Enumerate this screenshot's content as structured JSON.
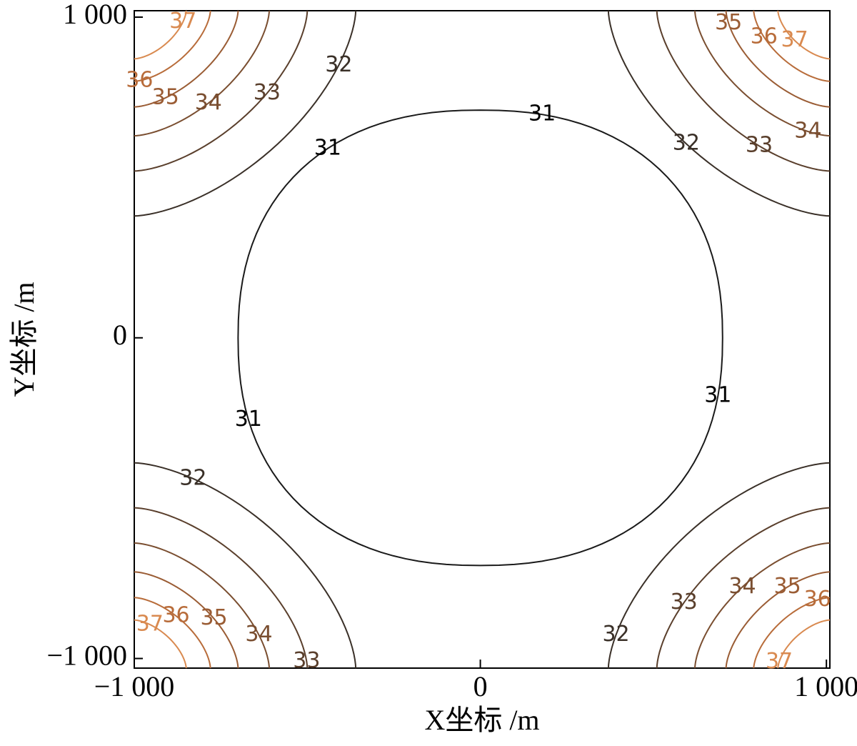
{
  "chart_data": {
    "type": "contour",
    "xlabel": "X坐标 /m",
    "ylabel": "Y坐标 /m",
    "xlim": [
      -1000,
      1010
    ],
    "ylim": [
      -1030,
      1020
    ],
    "xticks": [
      {
        "value": -1000,
        "label": "−1 000"
      },
      0,
      {
        "value": 1000,
        "label": "1 000"
      }
    ],
    "yticks": [
      {
        "value": -1000,
        "label": "−1 000"
      },
      0,
      {
        "value": 1000,
        "label": "1 000"
      }
    ],
    "levels": [
      31,
      32,
      33,
      34,
      35,
      36,
      37
    ],
    "colors": [
      "#1a1a1a",
      "#3a3028",
      "#5a3f2c",
      "#7a4e30",
      "#9a5c34",
      "#b86c3a",
      "#d98a50"
    ]
  }
}
